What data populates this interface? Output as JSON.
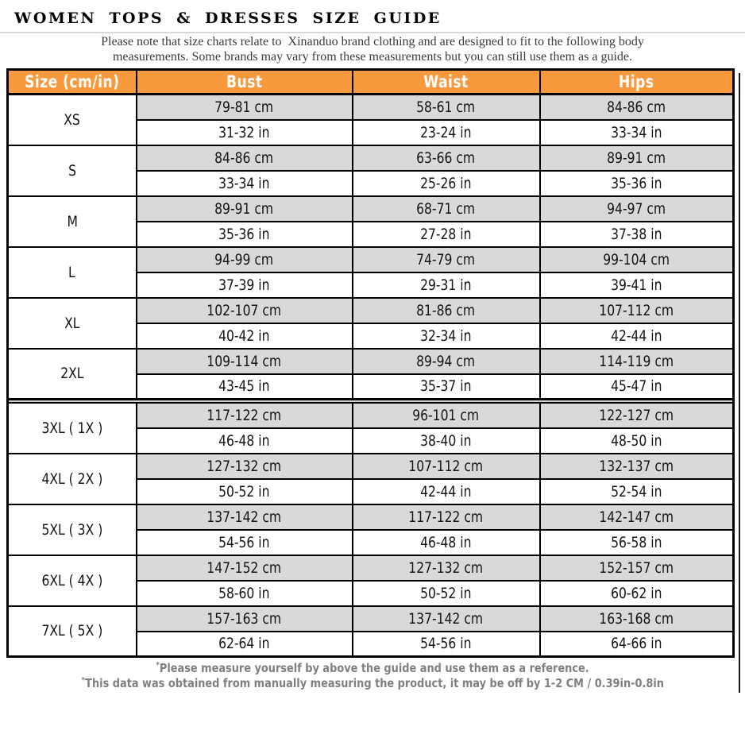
{
  "page": {
    "title": "WOMEN TOPS & DRESSES SIZE GUIDE"
  },
  "note": {
    "line1": "Please note that size charts relate to  Xinanduo brand clothing and are designed to fit to the following body",
    "line2": "measurements. Some brands may vary from these measurements but you can still use them as a guide."
  },
  "table": {
    "headers": {
      "size": "Size (cm/in)",
      "bust": "Bust",
      "waist": "Waist",
      "hips": "Hips"
    },
    "separator_after_index": 5,
    "groups": [
      {
        "size": "XS",
        "bust_cm": "79-81 cm",
        "bust_in": "31-32 in",
        "waist_cm": "58-61 cm",
        "waist_in": "23-24 in",
        "hips_cm": "84-86 cm",
        "hips_in": "33-34 in"
      },
      {
        "size": "S",
        "bust_cm": "84-86 cm",
        "bust_in": "33-34 in",
        "waist_cm": "63-66 cm",
        "waist_in": "25-26 in",
        "hips_cm": "89-91 cm",
        "hips_in": "35-36 in"
      },
      {
        "size": "M",
        "bust_cm": "89-91 cm",
        "bust_in": "35-36 in",
        "waist_cm": "68-71 cm",
        "waist_in": "27-28 in",
        "hips_cm": "94-97 cm",
        "hips_in": "37-38 in"
      },
      {
        "size": "L",
        "bust_cm": "94-99 cm",
        "bust_in": "37-39 in",
        "waist_cm": "74-79 cm",
        "waist_in": "29-31 in",
        "hips_cm": "99-104 cm",
        "hips_in": "39-41 in"
      },
      {
        "size": "XL",
        "bust_cm": "102-107 cm",
        "bust_in": "40-42 in",
        "waist_cm": "81-86 cm",
        "waist_in": "32-34 in",
        "hips_cm": "107-112 cm",
        "hips_in": "42-44 in"
      },
      {
        "size": "2XL",
        "bust_cm": "109-114 cm",
        "bust_in": "43-45 in",
        "waist_cm": "89-94 cm",
        "waist_in": "35-37 in",
        "hips_cm": "114-119 cm",
        "hips_in": "45-47 in"
      },
      {
        "size": "3XL ( 1X )",
        "bust_cm": "117-122 cm",
        "bust_in": "46-48 in",
        "waist_cm": "96-101 cm",
        "waist_in": "38-40 in",
        "hips_cm": "122-127 cm",
        "hips_in": "48-50 in"
      },
      {
        "size": "4XL ( 2X )",
        "bust_cm": "127-132 cm",
        "bust_in": "50-52 in",
        "waist_cm": "107-112 cm",
        "waist_in": "42-44 in",
        "hips_cm": "132-137 cm",
        "hips_in": "52-54 in"
      },
      {
        "size": "5XL ( 3X )",
        "bust_cm": "137-142 cm",
        "bust_in": "54-56 in",
        "waist_cm": "117-122 cm",
        "waist_in": "46-48 in",
        "hips_cm": "142-147 cm",
        "hips_in": "56-58 in"
      },
      {
        "size": "6XL ( 4X )",
        "bust_cm": "147-152 cm",
        "bust_in": "58-60 in",
        "waist_cm": "127-132 cm",
        "waist_in": "50-52 in",
        "hips_cm": "152-157 cm",
        "hips_in": "60-62 in"
      },
      {
        "size": "7XL ( 5X )",
        "bust_cm": "157-163 cm",
        "bust_in": "62-64 in",
        "waist_cm": "137-142 cm",
        "waist_in": "54-56 in",
        "hips_cm": "163-168 cm",
        "hips_in": "64-66 in"
      }
    ]
  },
  "footnotes": {
    "n1": {
      "marker": "*",
      "text": "Please measure yourself by above the guide and use them as a reference."
    },
    "n2": {
      "marker": "*",
      "text": "This data was obtained from manually measuring the product, it may be off by 1-2 CM / 0.39in-0.8in"
    }
  },
  "colors": {
    "header_bg": "#F9993E",
    "header_text": "#FFFFFF",
    "row_cm_bg": "#D9D9D9",
    "row_in_bg": "#FFFFFF",
    "border": "#000000",
    "separator_bg": "#CFCFCF",
    "note_text": "#3B3B3B",
    "footnote_text": "#7F7F7F"
  }
}
